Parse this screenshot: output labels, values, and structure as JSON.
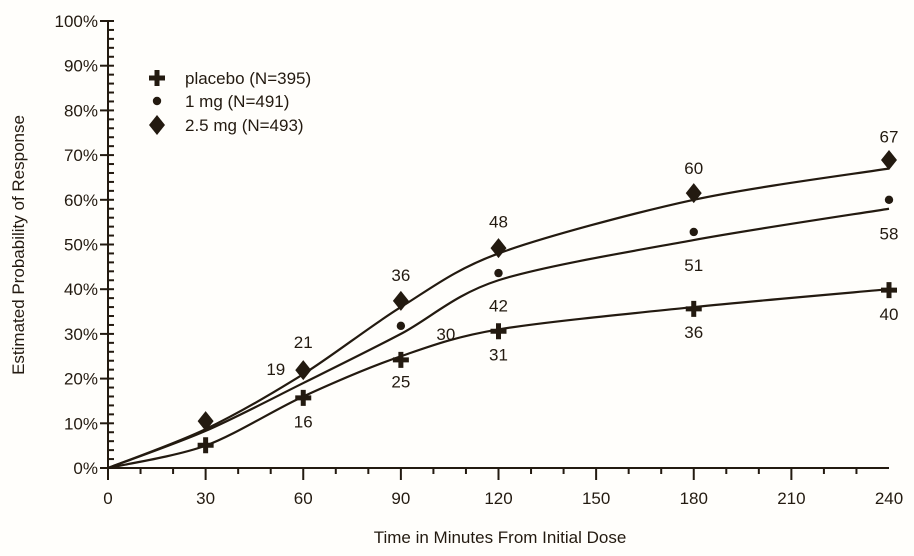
{
  "chart_data": {
    "type": "line",
    "title": "",
    "xlabel": "Time in Minutes From Initial Dose",
    "ylabel": "Estimated Probability of Response",
    "xlim": [
      0,
      240
    ],
    "ylim": [
      0,
      100
    ],
    "x_major_ticks": [
      0,
      30,
      60,
      90,
      120,
      150,
      180,
      210,
      240
    ],
    "x_tick_labels": [
      "0",
      "30",
      "60",
      "90",
      "120",
      "150",
      "180",
      "210",
      "240"
    ],
    "x_minor_step": 10,
    "y_major_ticks": [
      0,
      10,
      20,
      30,
      40,
      50,
      60,
      70,
      80,
      90,
      100
    ],
    "y_tick_labels": [
      "0%",
      "10%",
      "20%",
      "30%",
      "40%",
      "50%",
      "60%",
      "70%",
      "80%",
      "90%",
      "100%"
    ],
    "y_minor_step": 2,
    "grid": false,
    "legend_position": "top-left",
    "x": [
      0,
      30,
      60,
      90,
      120,
      180,
      240
    ],
    "series": [
      {
        "name": "placebo (N=395)",
        "marker": "plus",
        "fitted": [
          0,
          5,
          16,
          25,
          31,
          36,
          40
        ],
        "observed": [
          null,
          5.1,
          15.7,
          24.2,
          30.6,
          35.6,
          39.8
        ],
        "labels": [
          {
            "x": 60,
            "text": "16",
            "pos": "below"
          },
          {
            "x": 90,
            "text": "25",
            "pos": "below"
          },
          {
            "x": 120,
            "text": "31",
            "pos": "below"
          },
          {
            "x": 180,
            "text": "36",
            "pos": "below"
          },
          {
            "x": 240,
            "text": "40",
            "pos": "below"
          }
        ]
      },
      {
        "name": "1 mg (N=491)",
        "marker": "dot",
        "fitted": [
          0,
          8.3,
          19,
          30,
          42,
          51,
          58
        ],
        "observed": [
          null,
          null,
          null,
          31.8,
          43.6,
          52.8,
          60.0
        ],
        "labels": [
          {
            "x": 60,
            "text": "19",
            "pos": "left"
          },
          {
            "x": 90,
            "text": "30",
            "pos": "right"
          },
          {
            "x": 120,
            "text": "42",
            "pos": "below"
          },
          {
            "x": 180,
            "text": "51",
            "pos": "below"
          },
          {
            "x": 240,
            "text": "58",
            "pos": "below"
          }
        ]
      },
      {
        "name": "2.5 mg (N=493)",
        "marker": "diamond",
        "fitted": [
          0,
          8.7,
          21,
          36,
          48,
          60,
          67
        ],
        "observed": [
          null,
          10.5,
          21.9,
          37.4,
          49.2,
          61.5,
          68.9
        ],
        "labels": [
          {
            "x": 60,
            "text": "21",
            "pos": "above"
          },
          {
            "x": 90,
            "text": "36",
            "pos": "above"
          },
          {
            "x": 120,
            "text": "48",
            "pos": "above"
          },
          {
            "x": 180,
            "text": "60",
            "pos": "above"
          },
          {
            "x": 240,
            "text": "67",
            "pos": "above"
          }
        ]
      }
    ],
    "colors": {
      "ink": "#231a10",
      "background": "#fffefb"
    }
  }
}
